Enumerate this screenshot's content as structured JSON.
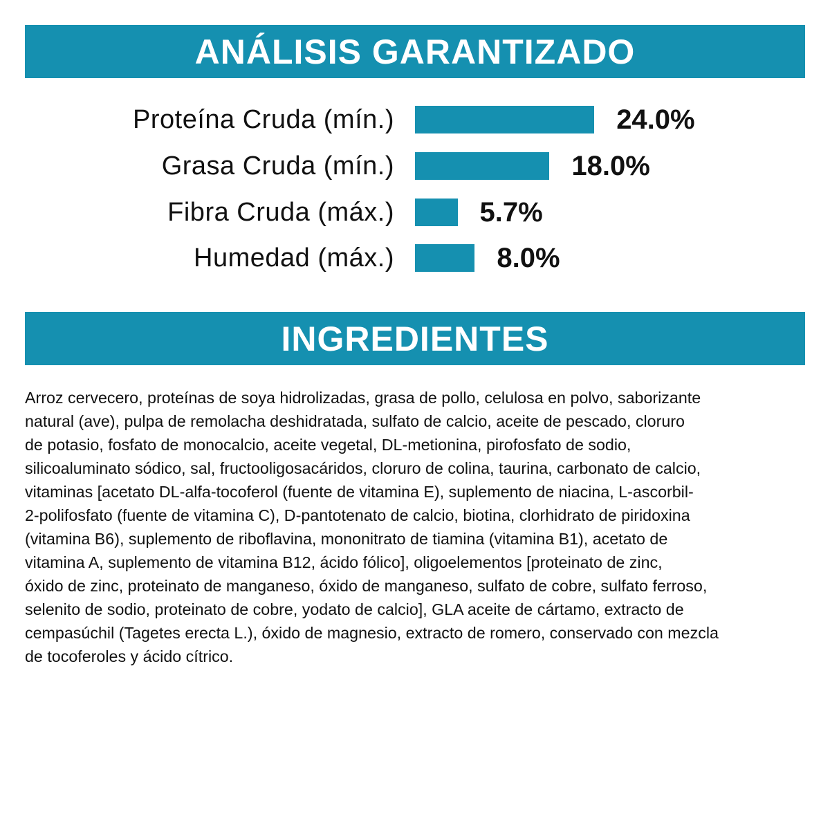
{
  "colors": {
    "accent": "#1590b0",
    "text": "#111111",
    "background": "#ffffff"
  },
  "analysis": {
    "title": "ANÁLISIS GARANTIZADO"
  },
  "chart_data": {
    "type": "bar",
    "orientation": "horizontal",
    "categories": [
      "Proteína Cruda (mín.)",
      "Grasa Cruda (mín.)",
      "Fibra Cruda (máx.)",
      "Humedad (máx.)"
    ],
    "values": [
      24.0,
      18.0,
      5.7,
      8.0
    ],
    "value_labels": [
      "24.0%",
      "18.0%",
      "5.7%",
      "8.0%"
    ],
    "unit": "%",
    "grid": false
  },
  "ingredients": {
    "title": "INGREDIENTES",
    "lines": [
      "Arroz cervecero, proteínas de soya hidrolizadas, grasa de pollo, celulosa en polvo, saborizante",
      "natural (ave), pulpa de remolacha deshidratada, sulfato de calcio, aceite de pescado, cloruro",
      "de potasio, fosfato de monocalcio, aceite vegetal, DL-metionina, pirofosfato de sodio,",
      "silicoaluminato sódico, sal, fructooligosacáridos, cloruro de colina, taurina, carbonato de calcio,",
      "vitaminas [acetato DL-alfa-tocoferol (fuente de vitamina E), suplemento de niacina, L-ascorbil-",
      "2-polifosfato (fuente de vitamina C), D-pantotenato de calcio, biotina, clorhidrato de piridoxina",
      "(vitamina B6), suplemento de riboflavina, mononitrato de tiamina (vitamina B1), acetato de",
      "vitamina A, suplemento de vitamina B12, ácido fólico], oligoelementos [proteinato de zinc,",
      "óxido de zinc, proteinato de manganeso, óxido de manganeso, sulfato de cobre, sulfato ferroso,",
      "selenito de sodio, proteinato de cobre, yodato de calcio], GLA aceite de cártamo, extracto de",
      "cempasúchil (Tagetes erecta L.), óxido de magnesio, extracto de romero, conservado con mezcla",
      "de tocoferoles y ácido cítrico."
    ]
  }
}
